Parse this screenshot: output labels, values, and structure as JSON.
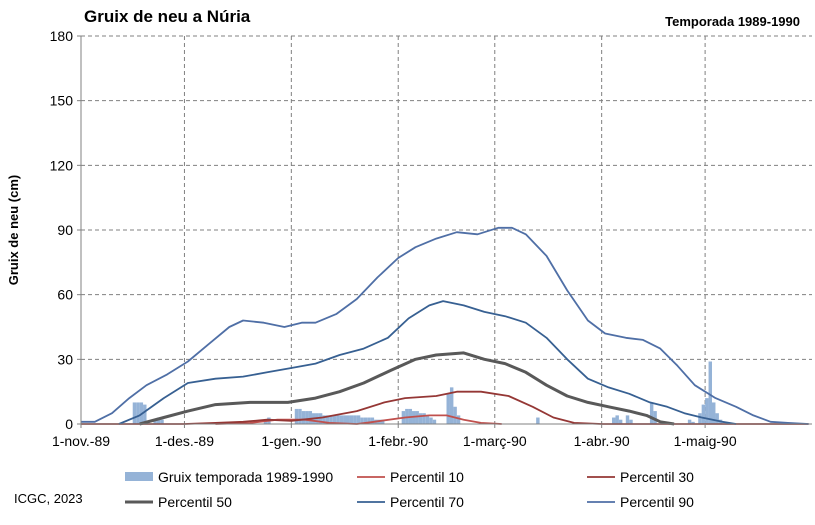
{
  "chart_data": {
    "type": "line",
    "title": "Gruix de neu a Núria",
    "subtitle": "Temporada 1989-1990",
    "ylabel": "Gruix de neu (cm)",
    "xlabel": "",
    "ylim": [
      0,
      180
    ],
    "yticks": [
      0,
      30,
      60,
      90,
      120,
      150,
      180
    ],
    "xlim": [
      "1989-11-01",
      "1990-05-31"
    ],
    "xticks": [
      {
        "date": "1989-11-01",
        "label": "1-nov.-89"
      },
      {
        "date": "1989-12-01",
        "label": "1-des.-89"
      },
      {
        "date": "1990-01-01",
        "label": "1-gen.-90"
      },
      {
        "date": "1990-02-01",
        "label": "1-febr.-90"
      },
      {
        "date": "1990-03-01",
        "label": "1-març-90"
      },
      {
        "date": "1990-04-01",
        "label": "1-abr.-90"
      },
      {
        "date": "1990-05-01",
        "label": "1-maig-90"
      }
    ],
    "grid": true,
    "legend_position": "bottom",
    "bars": {
      "name": "Gruix temporada 1989-1990",
      "color": "#95b3d7",
      "points": [
        {
          "date": "1989-11-16",
          "value": 10
        },
        {
          "date": "1989-11-17",
          "value": 10
        },
        {
          "date": "1989-11-18",
          "value": 10
        },
        {
          "date": "1989-11-19",
          "value": 9
        },
        {
          "date": "1989-11-22",
          "value": 2
        },
        {
          "date": "1989-11-23",
          "value": 3
        },
        {
          "date": "1989-11-24",
          "value": 2
        },
        {
          "date": "1989-12-24",
          "value": 2
        },
        {
          "date": "1989-12-25",
          "value": 3
        },
        {
          "date": "1990-01-02",
          "value": 7
        },
        {
          "date": "1990-01-03",
          "value": 7
        },
        {
          "date": "1990-01-04",
          "value": 6
        },
        {
          "date": "1990-01-05",
          "value": 6
        },
        {
          "date": "1990-01-06",
          "value": 6
        },
        {
          "date": "1990-01-07",
          "value": 5
        },
        {
          "date": "1990-01-08",
          "value": 5
        },
        {
          "date": "1990-01-09",
          "value": 5
        },
        {
          "date": "1990-01-10",
          "value": 4
        },
        {
          "date": "1990-01-11",
          "value": 4
        },
        {
          "date": "1990-01-12",
          "value": 4
        },
        {
          "date": "1990-01-13",
          "value": 4
        },
        {
          "date": "1990-01-14",
          "value": 4
        },
        {
          "date": "1990-01-15",
          "value": 4
        },
        {
          "date": "1990-01-16",
          "value": 4
        },
        {
          "date": "1990-01-17",
          "value": 4
        },
        {
          "date": "1990-01-18",
          "value": 4
        },
        {
          "date": "1990-01-19",
          "value": 4
        },
        {
          "date": "1990-01-20",
          "value": 4
        },
        {
          "date": "1990-01-21",
          "value": 3
        },
        {
          "date": "1990-01-22",
          "value": 3
        },
        {
          "date": "1990-01-23",
          "value": 3
        },
        {
          "date": "1990-01-24",
          "value": 3
        },
        {
          "date": "1990-01-25",
          "value": 2
        },
        {
          "date": "1990-01-26",
          "value": 2
        },
        {
          "date": "1990-01-27",
          "value": 2
        },
        {
          "date": "1990-02-02",
          "value": 6
        },
        {
          "date": "1990-02-03",
          "value": 7
        },
        {
          "date": "1990-02-04",
          "value": 7
        },
        {
          "date": "1990-02-05",
          "value": 6
        },
        {
          "date": "1990-02-06",
          "value": 6
        },
        {
          "date": "1990-02-07",
          "value": 5
        },
        {
          "date": "1990-02-08",
          "value": 5
        },
        {
          "date": "1990-02-09",
          "value": 4
        },
        {
          "date": "1990-02-10",
          "value": 3
        },
        {
          "date": "1990-02-11",
          "value": 2
        },
        {
          "date": "1990-02-15",
          "value": 14
        },
        {
          "date": "1990-02-16",
          "value": 17
        },
        {
          "date": "1990-02-17",
          "value": 8
        },
        {
          "date": "1990-02-18",
          "value": 4
        },
        {
          "date": "1990-03-13",
          "value": 3
        },
        {
          "date": "1990-04-04",
          "value": 3
        },
        {
          "date": "1990-04-05",
          "value": 4
        },
        {
          "date": "1990-04-06",
          "value": 2
        },
        {
          "date": "1990-04-08",
          "value": 4
        },
        {
          "date": "1990-04-09",
          "value": 2
        },
        {
          "date": "1990-04-15",
          "value": 10
        },
        {
          "date": "1990-04-16",
          "value": 6
        },
        {
          "date": "1990-04-26",
          "value": 2
        },
        {
          "date": "1990-04-27",
          "value": 1
        },
        {
          "date": "1990-04-29",
          "value": 5
        },
        {
          "date": "1990-04-30",
          "value": 9
        },
        {
          "date": "1990-05-01",
          "value": 12
        },
        {
          "date": "1990-05-02",
          "value": 29
        },
        {
          "date": "1990-05-03",
          "value": 10
        },
        {
          "date": "1990-05-04",
          "value": 5
        },
        {
          "date": "1990-05-05",
          "value": 2
        }
      ]
    },
    "series": [
      {
        "name": "Percentil 10",
        "color": "#c0504d",
        "width": 1.8,
        "points": [
          {
            "date": "1989-12-10",
            "value": 0
          },
          {
            "date": "1989-12-20",
            "value": 0.5
          },
          {
            "date": "1989-12-28",
            "value": 2
          },
          {
            "date": "1990-01-05",
            "value": 2
          },
          {
            "date": "1990-01-12",
            "value": 0.5
          },
          {
            "date": "1990-01-20",
            "value": 0
          },
          {
            "date": "1990-01-25",
            "value": 1
          },
          {
            "date": "1990-02-03",
            "value": 3
          },
          {
            "date": "1990-02-10",
            "value": 4
          },
          {
            "date": "1990-02-15",
            "value": 4
          },
          {
            "date": "1990-02-20",
            "value": 2
          },
          {
            "date": "1990-02-25",
            "value": 0.5
          },
          {
            "date": "1990-03-03",
            "value": 0
          }
        ]
      },
      {
        "name": "Percentil 30",
        "color": "#953735",
        "width": 1.8,
        "points": [
          {
            "date": "1989-11-01",
            "value": 0
          },
          {
            "date": "1989-12-01",
            "value": 0
          },
          {
            "date": "1989-12-10",
            "value": 0.5
          },
          {
            "date": "1989-12-18",
            "value": 1
          },
          {
            "date": "1989-12-25",
            "value": 2
          },
          {
            "date": "1990-01-01",
            "value": 1.5
          },
          {
            "date": "1990-01-10",
            "value": 3
          },
          {
            "date": "1990-01-20",
            "value": 6
          },
          {
            "date": "1990-01-28",
            "value": 10
          },
          {
            "date": "1990-02-03",
            "value": 12
          },
          {
            "date": "1990-02-12",
            "value": 13
          },
          {
            "date": "1990-02-18",
            "value": 15
          },
          {
            "date": "1990-02-25",
            "value": 15
          },
          {
            "date": "1990-03-05",
            "value": 13
          },
          {
            "date": "1990-03-12",
            "value": 8
          },
          {
            "date": "1990-03-18",
            "value": 3
          },
          {
            "date": "1990-03-24",
            "value": 0.5
          },
          {
            "date": "1990-04-01",
            "value": 0
          },
          {
            "date": "1990-05-31",
            "value": 0
          }
        ]
      },
      {
        "name": "Percentil 50",
        "color": "#595959",
        "width": 3,
        "points": [
          {
            "date": "1989-11-18",
            "value": 0
          },
          {
            "date": "1989-11-25",
            "value": 3
          },
          {
            "date": "1989-12-02",
            "value": 6
          },
          {
            "date": "1989-12-10",
            "value": 9
          },
          {
            "date": "1989-12-20",
            "value": 10
          },
          {
            "date": "1989-12-31",
            "value": 10
          },
          {
            "date": "1990-01-08",
            "value": 12
          },
          {
            "date": "1990-01-15",
            "value": 15
          },
          {
            "date": "1990-01-22",
            "value": 19
          },
          {
            "date": "1990-01-30",
            "value": 25
          },
          {
            "date": "1990-02-06",
            "value": 30
          },
          {
            "date": "1990-02-12",
            "value": 32
          },
          {
            "date": "1990-02-20",
            "value": 33
          },
          {
            "date": "1990-02-26",
            "value": 30
          },
          {
            "date": "1990-03-04",
            "value": 28
          },
          {
            "date": "1990-03-10",
            "value": 24
          },
          {
            "date": "1990-03-16",
            "value": 18
          },
          {
            "date": "1990-03-22",
            "value": 13
          },
          {
            "date": "1990-03-28",
            "value": 10
          },
          {
            "date": "1990-04-03",
            "value": 8
          },
          {
            "date": "1990-04-09",
            "value": 6
          },
          {
            "date": "1990-04-14",
            "value": 4
          },
          {
            "date": "1990-04-18",
            "value": 1
          },
          {
            "date": "1990-04-22",
            "value": 0
          }
        ]
      },
      {
        "name": "Percentil 70",
        "color": "#376092",
        "width": 1.8,
        "points": [
          {
            "date": "1989-11-12",
            "value": 0
          },
          {
            "date": "1989-11-18",
            "value": 4
          },
          {
            "date": "1989-11-25",
            "value": 12
          },
          {
            "date": "1989-12-02",
            "value": 19
          },
          {
            "date": "1989-12-10",
            "value": 21
          },
          {
            "date": "1989-12-18",
            "value": 22
          },
          {
            "date": "1989-12-25",
            "value": 24
          },
          {
            "date": "1990-01-01",
            "value": 26
          },
          {
            "date": "1990-01-08",
            "value": 28
          },
          {
            "date": "1990-01-15",
            "value": 32
          },
          {
            "date": "1990-01-22",
            "value": 35
          },
          {
            "date": "1990-01-29",
            "value": 40
          },
          {
            "date": "1990-02-04",
            "value": 49
          },
          {
            "date": "1990-02-10",
            "value": 55
          },
          {
            "date": "1990-02-14",
            "value": 57
          },
          {
            "date": "1990-02-20",
            "value": 55
          },
          {
            "date": "1990-02-26",
            "value": 52
          },
          {
            "date": "1990-03-04",
            "value": 50
          },
          {
            "date": "1990-03-10",
            "value": 47
          },
          {
            "date": "1990-03-16",
            "value": 40
          },
          {
            "date": "1990-03-22",
            "value": 30
          },
          {
            "date": "1990-03-28",
            "value": 21
          },
          {
            "date": "1990-04-03",
            "value": 17
          },
          {
            "date": "1990-04-09",
            "value": 14
          },
          {
            "date": "1990-04-15",
            "value": 10
          },
          {
            "date": "1990-04-20",
            "value": 8
          },
          {
            "date": "1990-04-25",
            "value": 5
          },
          {
            "date": "1990-04-30",
            "value": 3
          },
          {
            "date": "1990-05-06",
            "value": 1
          },
          {
            "date": "1990-05-10",
            "value": 0
          }
        ]
      },
      {
        "name": "Percentil 90",
        "color": "#4f6fa6",
        "width": 1.8,
        "points": [
          {
            "date": "1989-11-01",
            "value": 1
          },
          {
            "date": "1989-11-05",
            "value": 1
          },
          {
            "date": "1989-11-10",
            "value": 5
          },
          {
            "date": "1989-11-15",
            "value": 12
          },
          {
            "date": "1989-11-20",
            "value": 18
          },
          {
            "date": "1989-11-26",
            "value": 23
          },
          {
            "date": "1989-12-02",
            "value": 29
          },
          {
            "date": "1989-12-08",
            "value": 37
          },
          {
            "date": "1989-12-14",
            "value": 45
          },
          {
            "date": "1989-12-18",
            "value": 48
          },
          {
            "date": "1989-12-24",
            "value": 47
          },
          {
            "date": "1989-12-30",
            "value": 45
          },
          {
            "date": "1990-01-04",
            "value": 47
          },
          {
            "date": "1990-01-08",
            "value": 47
          },
          {
            "date": "1990-01-14",
            "value": 51
          },
          {
            "date": "1990-01-20",
            "value": 58
          },
          {
            "date": "1990-01-26",
            "value": 68
          },
          {
            "date": "1990-02-01",
            "value": 77
          },
          {
            "date": "1990-02-06",
            "value": 82
          },
          {
            "date": "1990-02-12",
            "value": 86
          },
          {
            "date": "1990-02-18",
            "value": 89
          },
          {
            "date": "1990-02-24",
            "value": 88
          },
          {
            "date": "1990-03-02",
            "value": 91
          },
          {
            "date": "1990-03-06",
            "value": 91
          },
          {
            "date": "1990-03-10",
            "value": 88
          },
          {
            "date": "1990-03-16",
            "value": 78
          },
          {
            "date": "1990-03-22",
            "value": 62
          },
          {
            "date": "1990-03-28",
            "value": 48
          },
          {
            "date": "1990-04-02",
            "value": 42
          },
          {
            "date": "1990-04-08",
            "value": 40
          },
          {
            "date": "1990-04-13",
            "value": 39
          },
          {
            "date": "1990-04-18",
            "value": 35
          },
          {
            "date": "1990-04-23",
            "value": 27
          },
          {
            "date": "1990-04-28",
            "value": 18
          },
          {
            "date": "1990-05-04",
            "value": 12
          },
          {
            "date": "1990-05-10",
            "value": 8
          },
          {
            "date": "1990-05-15",
            "value": 4
          },
          {
            "date": "1990-05-20",
            "value": 1
          },
          {
            "date": "1990-05-25",
            "value": 0.5
          },
          {
            "date": "1990-05-31",
            "value": 0
          }
        ]
      }
    ]
  },
  "credit": "ICGC, 2023"
}
